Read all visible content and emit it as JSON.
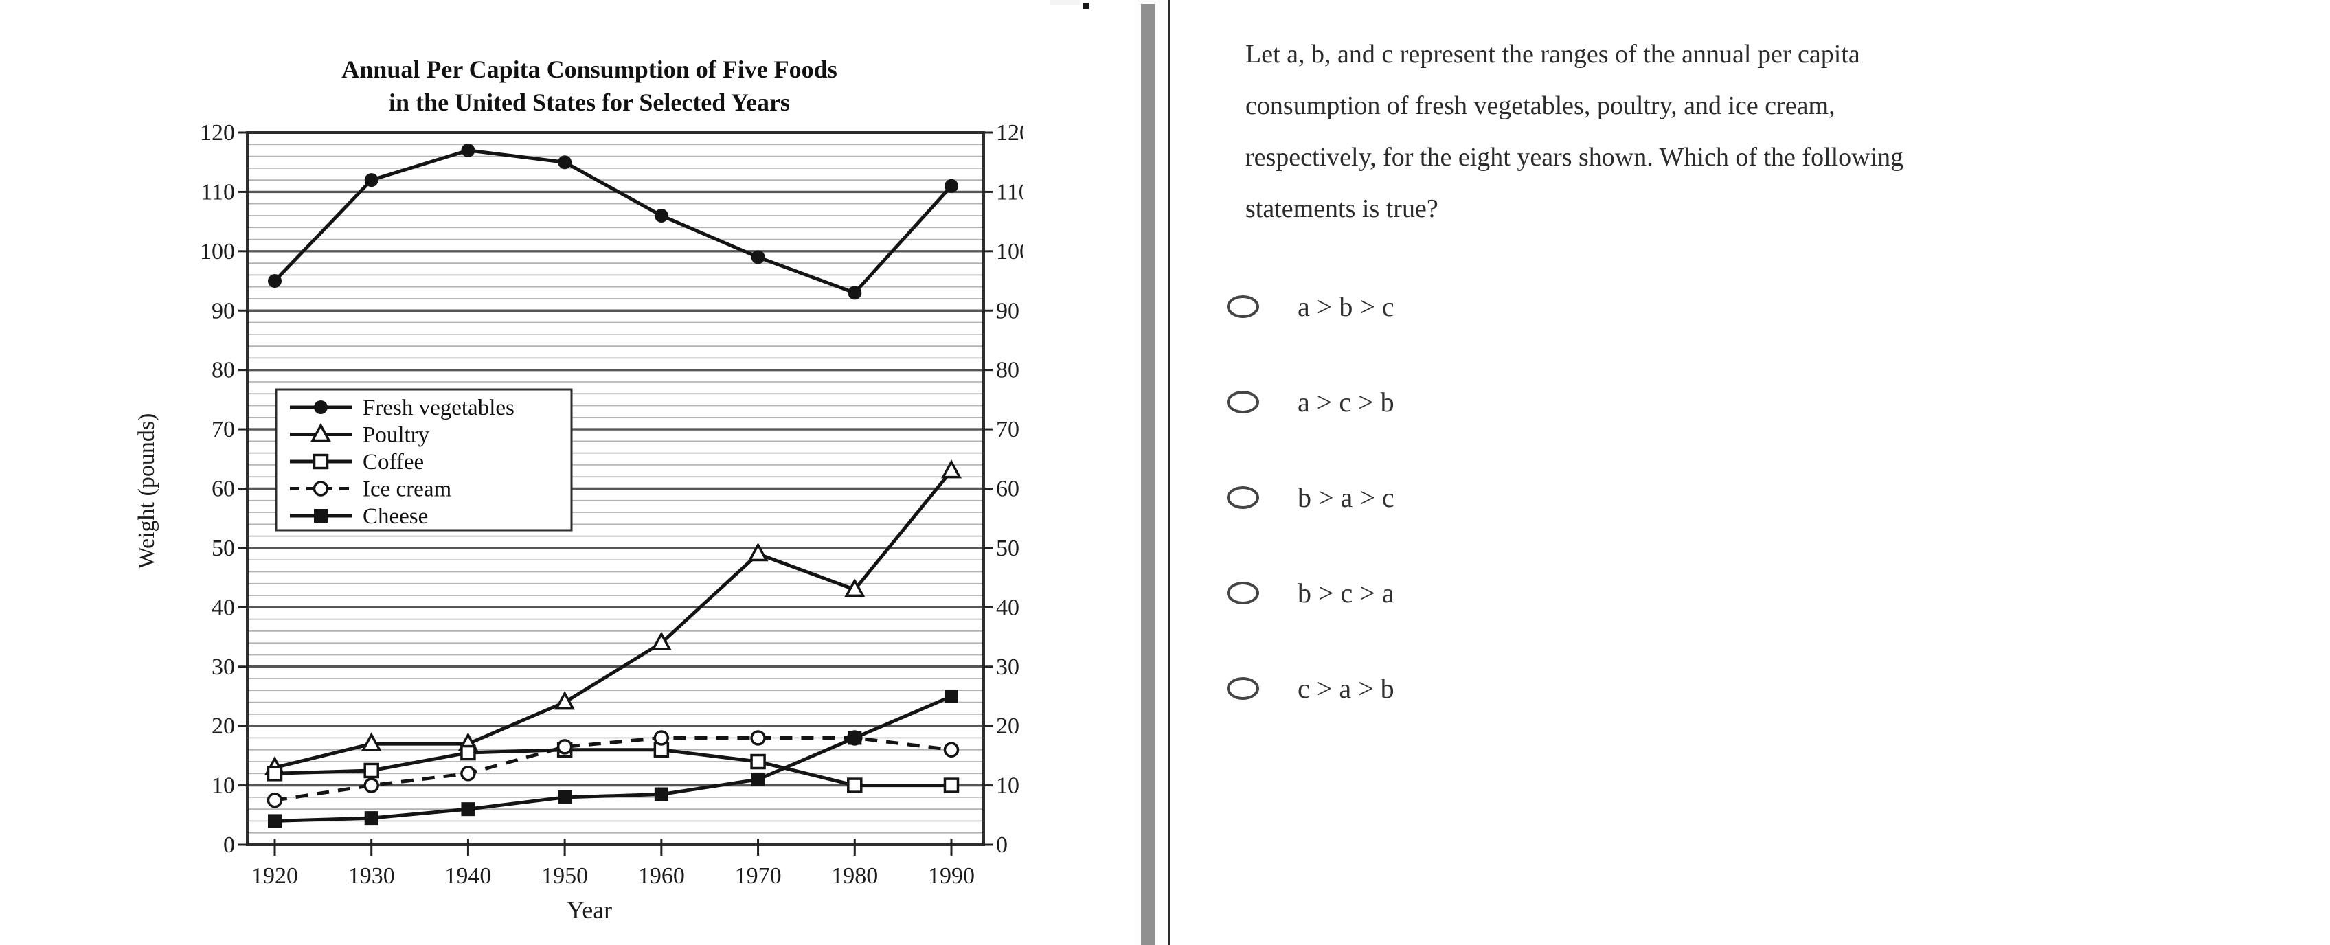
{
  "colors": {
    "chart_ink": "#141414",
    "grid_minor": "#b3b3b3",
    "grid_major": "#565656",
    "scrollbar": "#909090",
    "divider_line": "#2b2b2b",
    "text": "#2b2b2b"
  },
  "chart_data": {
    "type": "line",
    "title_line1": "Annual Per Capita Consumption of Five Foods",
    "title_line2": "in the United States for Selected Years",
    "xlabel": "Year",
    "ylabel": "Weight (pounds)",
    "x": [
      1920,
      1930,
      1940,
      1950,
      1960,
      1970,
      1980,
      1990
    ],
    "xlim": [
      1920,
      1990
    ],
    "ylim": [
      0,
      120
    ],
    "ytick_step": 10,
    "yminor_step": 2,
    "grid": "horizontal",
    "legend_position": "upper-left-inside",
    "series": [
      {
        "name": "Fresh vegetables",
        "marker": "circle-filled",
        "line": "solid",
        "values": [
          95,
          112,
          117,
          115,
          106,
          99,
          93,
          111
        ]
      },
      {
        "name": "Poultry",
        "marker": "triangle-open",
        "line": "solid",
        "values": [
          13,
          17,
          17,
          24,
          34,
          49,
          43,
          63
        ]
      },
      {
        "name": "Coffee",
        "marker": "square-open",
        "line": "solid",
        "values": [
          12,
          12.5,
          15.5,
          16,
          16,
          14,
          10,
          10
        ]
      },
      {
        "name": "Ice cream",
        "marker": "circle-open",
        "line": "dashed",
        "values": [
          7.5,
          10,
          12,
          16.5,
          18,
          18,
          18,
          16
        ]
      },
      {
        "name": "Cheese",
        "marker": "square-filled",
        "line": "solid",
        "values": [
          4,
          4.5,
          6,
          8,
          8.5,
          11,
          18,
          25
        ]
      }
    ]
  },
  "question": {
    "lines": [
      "Let a, b, and c represent the ranges of the annual per capita",
      "consumption of fresh vegetables, poultry, and ice cream,",
      "respectively, for the eight years shown. Which of the following",
      "statements is true?"
    ],
    "options": [
      "a > b > c",
      "a > c > b",
      "b > a > c",
      "b > c > a",
      "c > a > b"
    ]
  }
}
